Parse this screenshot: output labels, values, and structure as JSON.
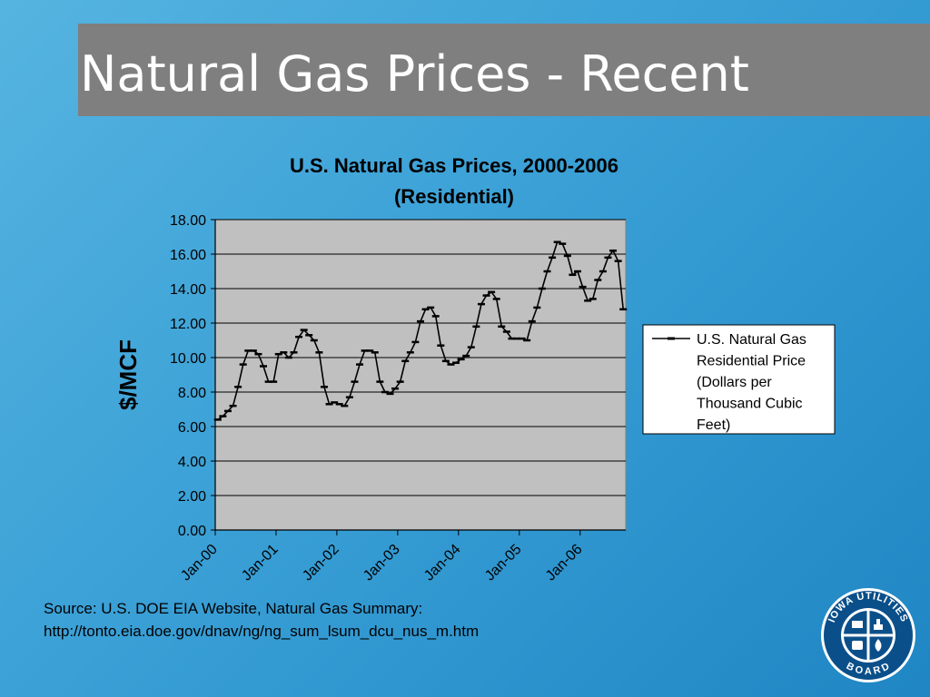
{
  "slide": {
    "title": "Natural Gas Prices - Recent",
    "source_line1": "Source: U.S. DOE EIA Website, Natural Gas Summary:",
    "source_line2": "http://tonto.eia.doe.gov/dnav/ng/ng_sum_lsum_dcu_nus_m.htm",
    "logo_text_top": "IOWA UTILITIES",
    "logo_text_bottom": "BOARD"
  },
  "colors": {
    "title_bar": "#7f7f7f",
    "plot_area": "#c0c0c0",
    "series_line": "#000000"
  },
  "chart_data": {
    "type": "line",
    "title_line1": "U.S. Natural Gas Prices, 2000-2006",
    "title_line2": "(Residential)",
    "ylabel": "$/MCF",
    "xlabel": "",
    "ylim": [
      0,
      18
    ],
    "y_ticks": [
      "0.00",
      "2.00",
      "4.00",
      "6.00",
      "8.00",
      "10.00",
      "12.00",
      "14.00",
      "16.00",
      "18.00"
    ],
    "x_tick_labels": [
      "Jan-00",
      "Jan-01",
      "Jan-02",
      "Jan-03",
      "Jan-04",
      "Jan-05",
      "Jan-06"
    ],
    "x_tick_months": [
      0,
      12,
      24,
      36,
      48,
      60,
      72
    ],
    "grid": "horizontal",
    "legend_position": "right",
    "series": [
      {
        "name": "U.S. Natural Gas Residential Price (Dollars per Thousand Cubic Feet)",
        "legend_lines": [
          "U.S. Natural Gas",
          "Residential Price",
          "(Dollars per",
          "Thousand Cubic",
          "Feet)"
        ],
        "start": "Jan-00",
        "values": [
          6.4,
          6.6,
          6.9,
          7.2,
          8.3,
          9.6,
          10.4,
          10.4,
          10.2,
          9.5,
          8.6,
          8.6,
          10.2,
          10.3,
          10.0,
          10.3,
          11.2,
          11.6,
          11.3,
          11.0,
          10.3,
          8.3,
          7.3,
          7.4,
          7.3,
          7.2,
          7.7,
          8.6,
          9.6,
          10.4,
          10.4,
          10.3,
          8.6,
          8.0,
          7.9,
          8.2,
          8.6,
          9.8,
          10.3,
          10.9,
          12.1,
          12.8,
          12.9,
          12.4,
          10.7,
          9.8,
          9.6,
          9.7,
          9.9,
          10.1,
          10.6,
          11.8,
          13.1,
          13.6,
          13.8,
          13.4,
          11.8,
          11.5,
          11.1,
          11.1,
          11.1,
          11.0,
          12.1,
          12.9,
          14.0,
          15.0,
          15.8,
          16.7,
          16.6,
          15.9,
          14.8,
          15.0,
          14.1,
          13.3,
          13.4,
          14.5,
          15.0,
          15.8,
          16.2,
          15.6,
          12.8
        ]
      }
    ]
  }
}
